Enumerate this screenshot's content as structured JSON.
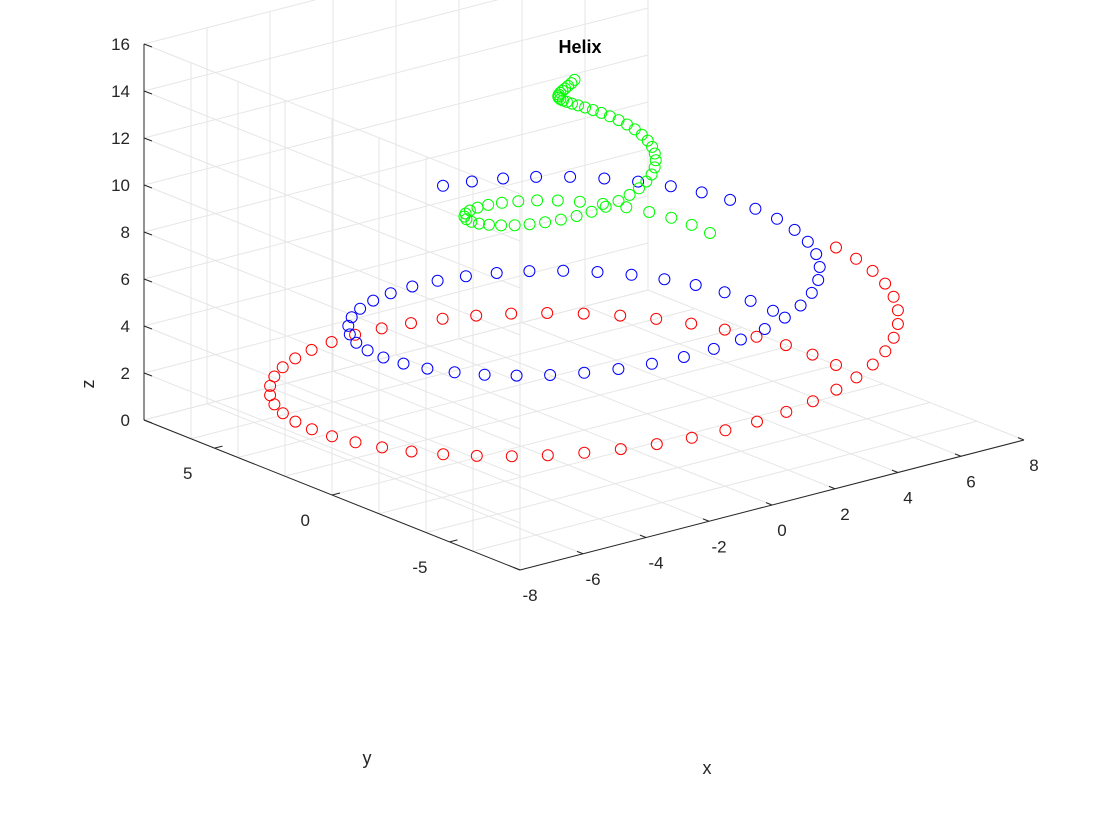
{
  "figure": {
    "title": "Helix",
    "xlabel": "x",
    "ylabel": "y",
    "zlabel": "z"
  },
  "chart_data": {
    "type": "scatter",
    "dimensions": 3,
    "title": "Helix",
    "xlabel": "x",
    "ylabel": "y",
    "zlabel": "z",
    "xlim": [
      -8,
      8
    ],
    "ylim": [
      -8,
      8
    ],
    "zlim": [
      0,
      16
    ],
    "x_ticks": [
      -8,
      -6,
      -4,
      -2,
      0,
      2,
      4,
      6,
      8
    ],
    "y_ticks": [
      -5,
      0,
      5
    ],
    "z_ticks": [
      0,
      2,
      4,
      6,
      8,
      10,
      12,
      14,
      16
    ],
    "grid": true,
    "box": "open",
    "marker": "circle-open",
    "series": [
      {
        "color": "#ff0000",
        "radius_start": 8,
        "radius_end": 8,
        "z_start": 0,
        "z_end": 5,
        "turns": 1,
        "points": 55
      },
      {
        "color": "#0000ff",
        "radius_start": 6,
        "radius_end": 6,
        "z_start": 3,
        "z_end": 8,
        "turns": 1.25,
        "points": 55
      },
      {
        "color": "#00ff00",
        "radius_start": 4,
        "radius_end": 0.3,
        "z_start": 7,
        "z_end": 15,
        "turns": 1.5,
        "points": 60
      }
    ]
  }
}
